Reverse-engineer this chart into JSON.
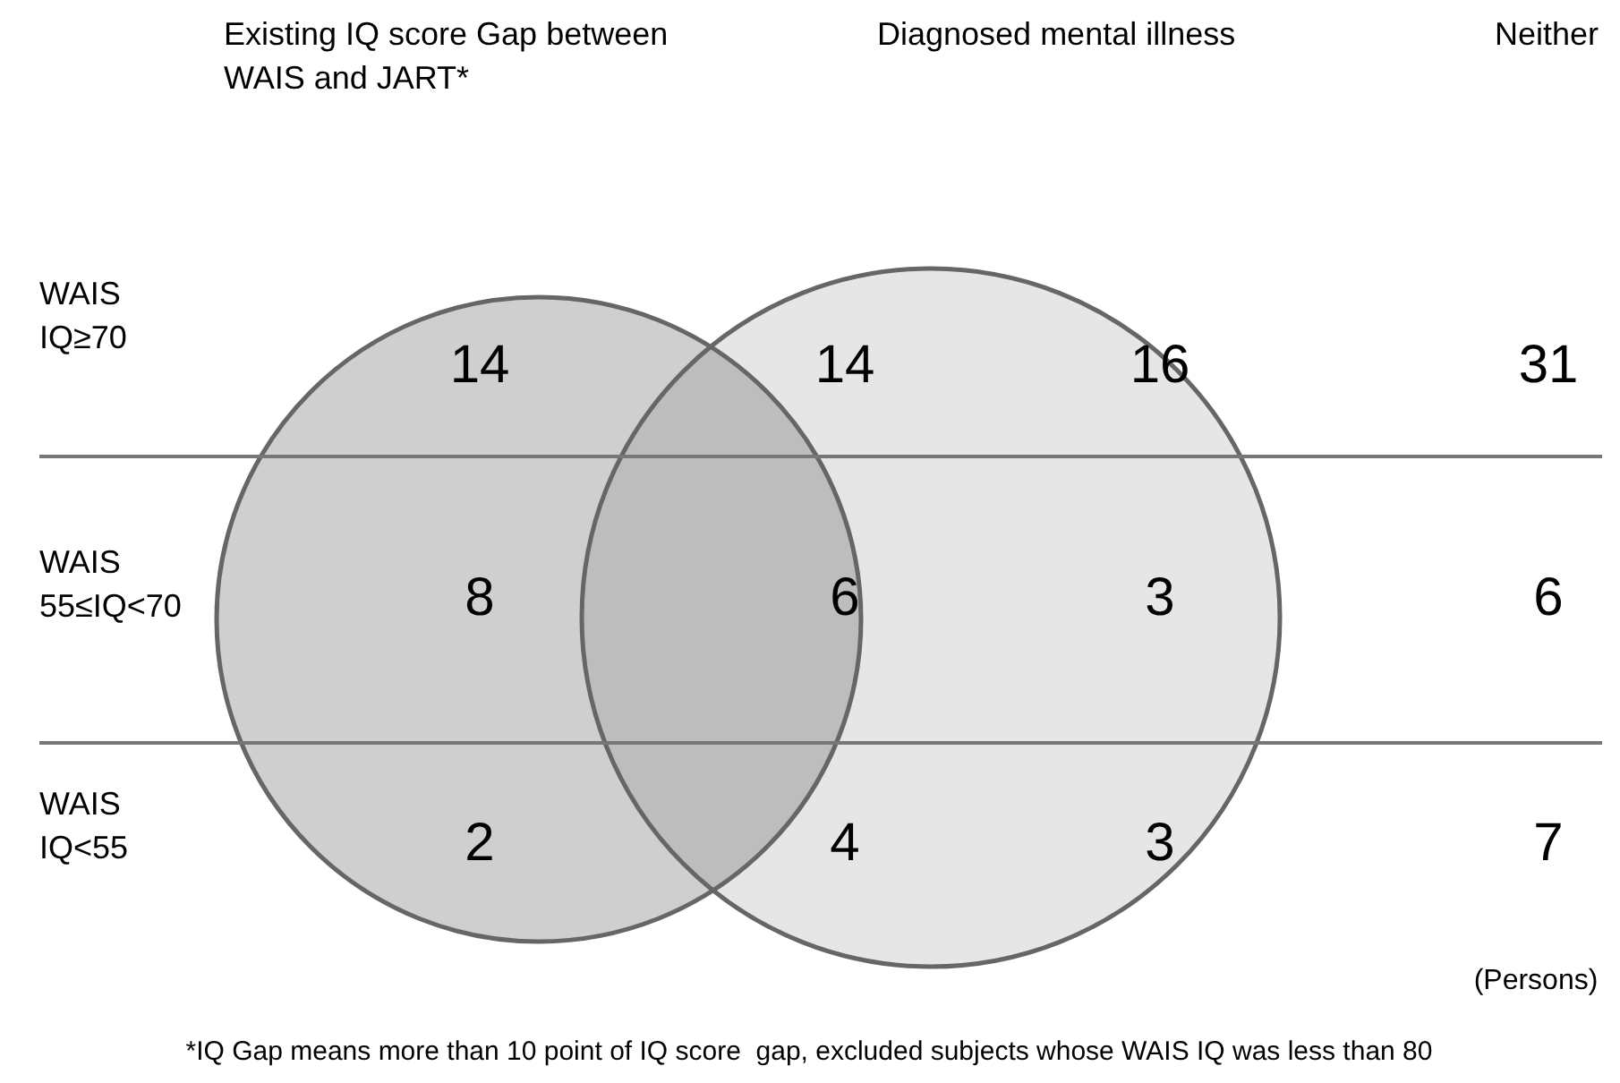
{
  "chart_data": {
    "type": "other",
    "data_labels": true,
    "categories": [
      "WAIS\nIQ≥70",
      "WAIS\n55≤IQ<70",
      "WAIS\nIQ<55"
    ],
    "series": [
      {
        "name": "Existing IQ score Gap between\nWAIS and JART*",
        "values": [
          14,
          8,
          2
        ]
      },
      {
        "values": [
          14,
          6,
          4
        ]
      },
      {
        "name": "Diagnosed mental illness",
        "values": [
          16,
          3,
          3
        ]
      },
      {
        "name": "Neither",
        "values": [
          31,
          6,
          7
        ]
      }
    ],
    "annotations": [
      "(Persons)",
      "*IQ Gap means more than 10 point of IQ score  gap, excluded subjects whose WAIS IQ was less than 80"
    ]
  }
}
